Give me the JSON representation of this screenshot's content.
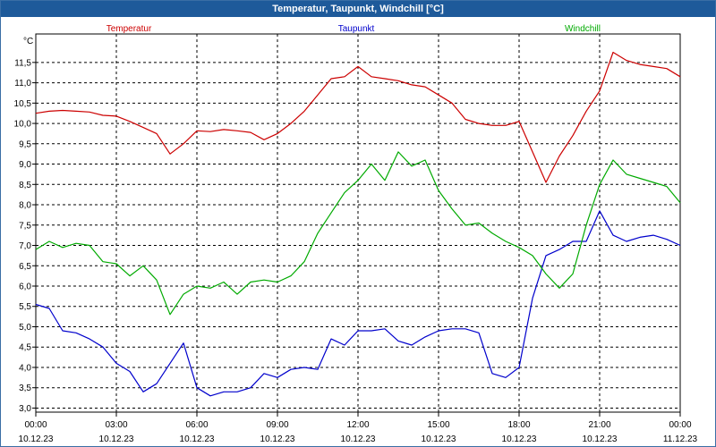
{
  "window": {
    "title": "Temperatur, Taupunkt, Windchill [°C]"
  },
  "colors": {
    "title_bar": "#1e5a9a",
    "temperature": "#cc0000",
    "dewpoint": "#0000cc",
    "windchill": "#00aa00",
    "grid": "#000000"
  },
  "chart_data": {
    "type": "line",
    "title": "Temperatur, Taupunkt, Windchill [°C]",
    "ylabel": "°C",
    "ylim": [
      2.9,
      12.2
    ],
    "y_ticks": [
      "3,0",
      "3,5",
      "4,0",
      "4,5",
      "5,0",
      "5,5",
      "6,0",
      "6,5",
      "7,0",
      "7,5",
      "8,0",
      "8,5",
      "9,0",
      "9,5",
      "10,0",
      "10,5",
      "11,0",
      "11,5"
    ],
    "y_tick_values": [
      3.0,
      3.5,
      4.0,
      4.5,
      5.0,
      5.5,
      6.0,
      6.5,
      7.0,
      7.5,
      8.0,
      8.5,
      9.0,
      9.5,
      10.0,
      10.5,
      11.0,
      11.5
    ],
    "x_ticks": [
      {
        "time": "00:00",
        "date": "10.12.23"
      },
      {
        "time": "03:00",
        "date": "10.12.23"
      },
      {
        "time": "06:00",
        "date": "10.12.23"
      },
      {
        "time": "09:00",
        "date": "10.12.23"
      },
      {
        "time": "12:00",
        "date": "10.12.23"
      },
      {
        "time": "15:00",
        "date": "10.12.23"
      },
      {
        "time": "18:00",
        "date": "10.12.23"
      },
      {
        "time": "21:00",
        "date": "10.12.23"
      },
      {
        "time": "00:00",
        "date": "11.12.23"
      }
    ],
    "grid": true,
    "legend_position": "top",
    "x": [
      0,
      0.5,
      1,
      1.5,
      2,
      2.5,
      3,
      3.5,
      4,
      4.5,
      5,
      5.5,
      6,
      6.5,
      7,
      7.5,
      8,
      8.5,
      9,
      9.5,
      10,
      10.5,
      11,
      11.5,
      12,
      12.5,
      13,
      13.5,
      14,
      14.5,
      15,
      15.5,
      16,
      16.5,
      17,
      17.5,
      18,
      18.5,
      19,
      19.5,
      20,
      20.5,
      21,
      21.5,
      22,
      22.5,
      23,
      23.5,
      24
    ],
    "series": [
      {
        "name": "Temperatur",
        "color": "#cc0000",
        "values": [
          10.25,
          10.3,
          10.32,
          10.3,
          10.28,
          10.2,
          10.18,
          10.05,
          9.9,
          9.75,
          9.25,
          9.5,
          9.82,
          9.8,
          9.85,
          9.82,
          9.78,
          9.6,
          9.75,
          10.0,
          10.3,
          10.7,
          11.1,
          11.15,
          11.4,
          11.15,
          11.1,
          11.05,
          10.95,
          10.9,
          10.7,
          10.5,
          10.1,
          10.0,
          9.95,
          9.95,
          10.05,
          9.3,
          8.55,
          9.2,
          9.7,
          10.3,
          10.8,
          11.75,
          11.55,
          11.45,
          11.4,
          11.35,
          11.15
        ]
      },
      {
        "name": "Taupunkt",
        "color": "#0000cc",
        "values": [
          5.55,
          5.45,
          4.9,
          4.85,
          4.7,
          4.5,
          4.1,
          3.9,
          3.4,
          3.6,
          4.1,
          4.6,
          3.5,
          3.3,
          3.4,
          3.4,
          3.5,
          3.85,
          3.75,
          3.95,
          4.0,
          3.95,
          4.7,
          4.55,
          4.9,
          4.9,
          4.95,
          4.65,
          4.55,
          4.75,
          4.9,
          4.95,
          4.95,
          4.85,
          3.85,
          3.75,
          4.0,
          5.7,
          6.75,
          6.9,
          7.1,
          7.1,
          7.85,
          7.25,
          7.1,
          7.2,
          7.25,
          7.15,
          7.0
        ]
      },
      {
        "name": "Windchill",
        "color": "#00aa00",
        "values": [
          6.9,
          7.1,
          6.95,
          7.05,
          7.0,
          6.6,
          6.55,
          6.25,
          6.5,
          6.15,
          5.3,
          5.8,
          6.0,
          5.95,
          6.1,
          5.8,
          6.1,
          6.15,
          6.1,
          6.25,
          6.6,
          7.3,
          7.8,
          8.3,
          8.6,
          9.0,
          8.6,
          9.3,
          8.95,
          9.1,
          8.35,
          7.9,
          7.5,
          7.55,
          7.3,
          7.1,
          6.95,
          6.75,
          6.3,
          5.95,
          6.3,
          7.5,
          8.5,
          9.1,
          8.75,
          8.65,
          8.55,
          8.45,
          8.05
        ]
      }
    ]
  }
}
